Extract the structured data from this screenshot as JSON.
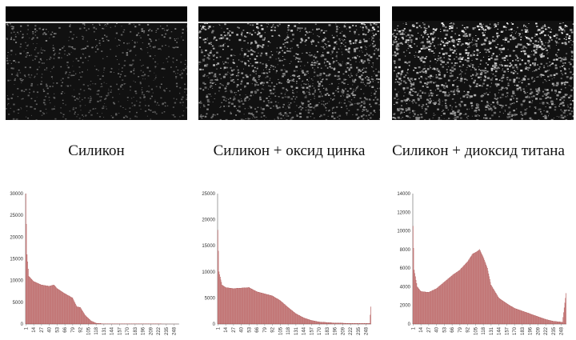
{
  "colors": {
    "bar": "#c87777",
    "bar_edge": "#a34c4c",
    "axis": "#888888",
    "image_bg": "#111111"
  },
  "panels": [
    {
      "caption": "Силикон",
      "speckle": {
        "brightness": 0.35,
        "density": 0.45,
        "surface_line": true
      }
    },
    {
      "caption": "Силикон + оксид цинка",
      "speckle": {
        "brightness": 0.7,
        "density": 0.75,
        "surface_line": true
      }
    },
    {
      "caption": "Силикон + диоксид титана",
      "speckle": {
        "brightness": 0.85,
        "density": 0.9,
        "surface_line": false
      }
    }
  ],
  "chart_data": [
    {
      "type": "bar",
      "title": "",
      "xlabel": "",
      "ylabel": "",
      "ylim": [
        0,
        30000
      ],
      "yticks": [
        "0",
        "5000",
        "10000",
        "15000",
        "20000",
        "25000",
        "30000"
      ],
      "xticks": [
        "1",
        "14",
        "27",
        "40",
        "53",
        "66",
        "79",
        "92",
        "105",
        "118",
        "131",
        "144",
        "157",
        "170",
        "183",
        "196",
        "209",
        "222",
        "235",
        "248"
      ],
      "x_range": [
        1,
        256
      ],
      "profile": [
        [
          1,
          30000
        ],
        [
          3,
          16000
        ],
        [
          6,
          11000
        ],
        [
          14,
          9800
        ],
        [
          27,
          9000
        ],
        [
          40,
          8700
        ],
        [
          48,
          9000
        ],
        [
          53,
          8200
        ],
        [
          66,
          7000
        ],
        [
          79,
          6000
        ],
        [
          86,
          4000
        ],
        [
          92,
          3800
        ],
        [
          100,
          2000
        ],
        [
          110,
          700
        ],
        [
          118,
          200
        ],
        [
          131,
          60
        ],
        [
          256,
          0
        ]
      ]
    },
    {
      "type": "bar",
      "title": "",
      "xlabel": "",
      "ylabel": "",
      "ylim": [
        0,
        25000
      ],
      "yticks": [
        "0",
        "5000",
        "10000",
        "15000",
        "20000",
        "25000"
      ],
      "xticks": [
        "1",
        "14",
        "27",
        "40",
        "53",
        "66",
        "79",
        "92",
        "105",
        "118",
        "131",
        "144",
        "157",
        "170",
        "183",
        "196",
        "209",
        "222",
        "235",
        "248"
      ],
      "x_range": [
        1,
        256
      ],
      "profile": [
        [
          1,
          18000
        ],
        [
          3,
          10000
        ],
        [
          8,
          7500
        ],
        [
          14,
          7000
        ],
        [
          27,
          6800
        ],
        [
          40,
          6900
        ],
        [
          53,
          7000
        ],
        [
          66,
          6200
        ],
        [
          79,
          5800
        ],
        [
          92,
          5400
        ],
        [
          105,
          4500
        ],
        [
          118,
          3200
        ],
        [
          131,
          2000
        ],
        [
          144,
          1200
        ],
        [
          157,
          700
        ],
        [
          170,
          400
        ],
        [
          196,
          200
        ],
        [
          235,
          100
        ],
        [
          254,
          100
        ],
        [
          256,
          3300
        ]
      ]
    },
    {
      "type": "bar",
      "title": "",
      "xlabel": "",
      "ylabel": "",
      "ylim": [
        0,
        14000
      ],
      "yticks": [
        "0",
        "2000",
        "4000",
        "6000",
        "8000",
        "10000",
        "12000",
        "14000"
      ],
      "xticks": [
        "1",
        "14",
        "27",
        "40",
        "53",
        "66",
        "79",
        "92",
        "105",
        "118",
        "131",
        "144",
        "157",
        "170",
        "183",
        "196",
        "209",
        "222",
        "235",
        "248"
      ],
      "x_range": [
        1,
        256
      ],
      "profile": [
        [
          1,
          10500
        ],
        [
          3,
          5800
        ],
        [
          8,
          4000
        ],
        [
          14,
          3500
        ],
        [
          27,
          3400
        ],
        [
          40,
          3800
        ],
        [
          53,
          4500
        ],
        [
          66,
          5200
        ],
        [
          79,
          5800
        ],
        [
          92,
          6700
        ],
        [
          100,
          7500
        ],
        [
          108,
          7800
        ],
        [
          112,
          8000
        ],
        [
          118,
          7200
        ],
        [
          125,
          6000
        ],
        [
          131,
          4200
        ],
        [
          144,
          2800
        ],
        [
          157,
          2200
        ],
        [
          170,
          1700
        ],
        [
          183,
          1400
        ],
        [
          196,
          1100
        ],
        [
          209,
          800
        ],
        [
          222,
          500
        ],
        [
          235,
          300
        ],
        [
          250,
          200
        ],
        [
          256,
          3300
        ]
      ]
    }
  ]
}
